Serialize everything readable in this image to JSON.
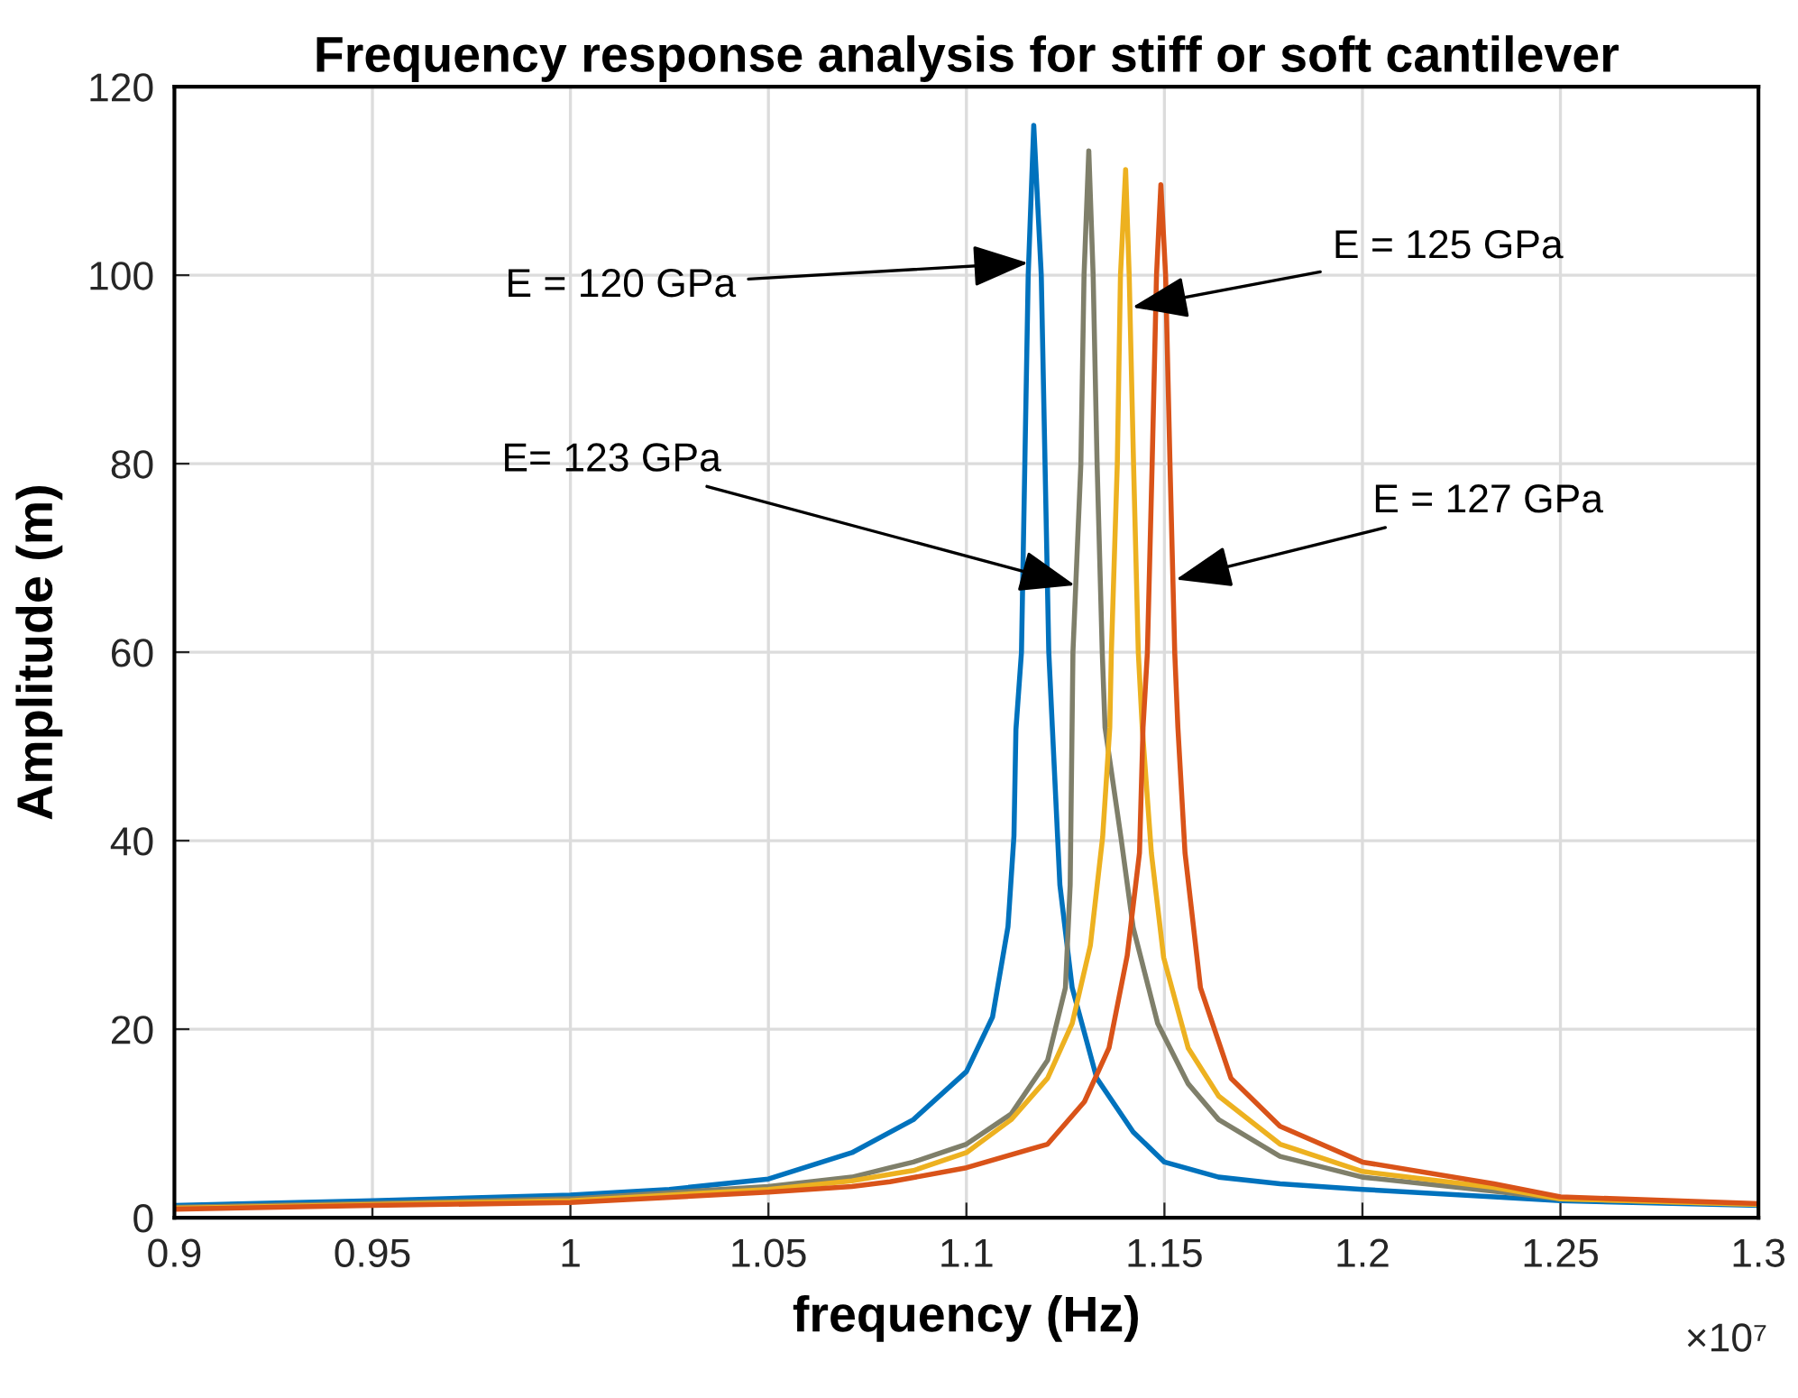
{
  "chart_data": {
    "type": "line",
    "title": "Frequency response analysis for stiff or soft cantilever",
    "xlabel": "frequency (Hz)",
    "ylabel": "Amplitude (m)",
    "xlim": [
      0.9,
      1.3
    ],
    "xticks": [
      0.9,
      0.95,
      1,
      1.05,
      1.1,
      1.15,
      1.2,
      1.25,
      1.3
    ],
    "ylim": [
      0,
      120
    ],
    "yticks": [
      0,
      20,
      40,
      60,
      80,
      100,
      120
    ],
    "grid": true,
    "marker": "none",
    "line_style": "solid",
    "series": [
      {
        "color": "#0072bd",
        "x": [
          0.9,
          0.95,
          1.0,
          1.025,
          1.05,
          1.0711,
          1.0866,
          1.1,
          1.1066,
          1.1105,
          1.112,
          1.1125,
          1.1139,
          1.1156,
          1.117,
          1.1189,
          1.1208,
          1.1217,
          1.1236,
          1.1267,
          1.1329,
          1.1421,
          1.15,
          1.1637,
          1.1792,
          1.2,
          1.2332,
          1.25,
          1.3
        ],
        "values": [
          1.3,
          1.8,
          2.4,
          3.0,
          4.1,
          6.9,
          10.4,
          15.5,
          21.3,
          30.9,
          40.5,
          51.8,
          60,
          100,
          115.9,
          100,
          60,
          52,
          35.3,
          24.4,
          14.8,
          9.1,
          5.9,
          4.3,
          3.6,
          3.0,
          2.2,
          1.8,
          1.3
        ]
      },
      {
        "color": "#7f7f6a",
        "x": [
          0.9,
          0.95,
          1.0,
          1.05,
          1.0711,
          1.0807,
          1.0866,
          1.1,
          1.1113,
          1.1205,
          1.125,
          1.1262,
          1.1269,
          1.1289,
          1.1297,
          1.1309,
          1.132,
          1.133,
          1.1343,
          1.135,
          1.139,
          1.1421,
          1.1483,
          1.156,
          1.1637,
          1.1792,
          1.2,
          1.2332,
          1.25,
          1.3
        ],
        "values": [
          1.1,
          1.5,
          2.0,
          3.3,
          4.3,
          5.3,
          5.9,
          7.8,
          11.0,
          16.7,
          24.4,
          35.3,
          60,
          80,
          100,
          113.2,
          100,
          80,
          60,
          52,
          40.4,
          30.8,
          20.6,
          14.2,
          10.4,
          6.5,
          4.3,
          2.8,
          2.0,
          1.4
        ]
      },
      {
        "color": "#edb120",
        "x": [
          0.9,
          0.95,
          1.0,
          1.05,
          1.0711,
          1.0807,
          1.0866,
          1.1,
          1.1113,
          1.1205,
          1.1267,
          1.1313,
          1.1344,
          1.1362,
          1.1366,
          1.1381,
          1.1389,
          1.1402,
          1.1411,
          1.1422,
          1.1434,
          1.1444,
          1.1467,
          1.1498,
          1.156,
          1.1637,
          1.1792,
          1.2,
          1.2332,
          1.25,
          1.3
        ],
        "values": [
          1.0,
          1.4,
          1.8,
          3.0,
          3.9,
          4.6,
          5.0,
          6.9,
          10.4,
          14.8,
          20.6,
          28.9,
          40.4,
          52,
          60,
          80,
          100,
          111.2,
          100,
          80,
          60,
          52,
          38.7,
          27.6,
          18.0,
          12.9,
          7.8,
          4.9,
          3.2,
          2.0,
          1.4
        ]
      },
      {
        "color": "#d95319",
        "x": [
          0.9,
          0.95,
          1.0,
          1.05,
          1.0711,
          1.0807,
          1.1,
          1.1205,
          1.1298,
          1.136,
          1.1406,
          1.1437,
          1.1446,
          1.1457,
          1.1469,
          1.148,
          1.1491,
          1.1503,
          1.1514,
          1.1526,
          1.1534,
          1.1552,
          1.1591,
          1.1668,
          1.1792,
          1.2,
          1.2332,
          1.25,
          1.3
        ],
        "values": [
          0.9,
          1.3,
          1.6,
          2.7,
          3.3,
          3.8,
          5.3,
          7.8,
          12.3,
          18.0,
          27.8,
          38.7,
          52,
          60,
          80,
          100,
          109.6,
          100,
          80,
          60,
          52,
          38.7,
          24.4,
          14.8,
          9.7,
          5.9,
          3.6,
          2.2,
          1.5
        ]
      }
    ],
    "annotations": [
      {
        "text": "E = 120 GPa",
        "x": 1.1156,
        "y": 101.3
      },
      {
        "text": "E = 125 GPa",
        "x": 1.1419,
        "y": 96.6
      },
      {
        "text": "E= 123 GPa",
        "x": 1.1274,
        "y": 67.1
      },
      {
        "text": "E = 127 GPa",
        "x": 1.1529,
        "y": 67.7
      },
      "×10⁷"
    ]
  }
}
